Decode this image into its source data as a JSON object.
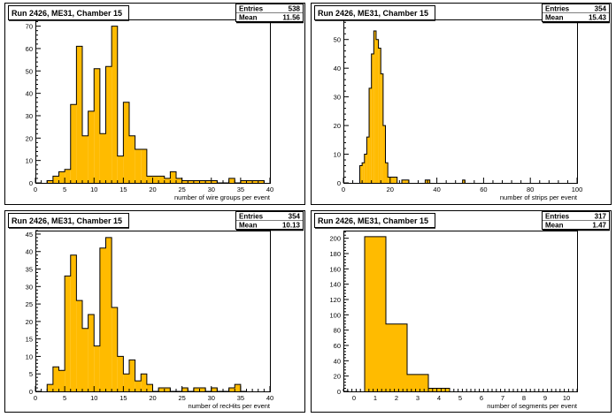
{
  "page": {
    "background": "#ffffff",
    "fill_color": "#ffbb00",
    "line_color": "#000000"
  },
  "chart_data": [
    {
      "type": "bar",
      "title": "Run 2426, ME31, Chamber 15",
      "xlabel": "number of wire groups per event",
      "stats": {
        "entries_label": "Entries",
        "entries": "538",
        "mean_label": "Mean",
        "mean": "11.56"
      },
      "xlim": [
        0,
        40
      ],
      "ylim": [
        0,
        73
      ],
      "x_ticks": [
        0,
        5,
        10,
        15,
        20,
        25,
        30,
        35,
        40
      ],
      "y_ticks": [
        0,
        10,
        20,
        30,
        40,
        50,
        60,
        70
      ],
      "bin_width": 1,
      "bin_start": [
        2,
        3,
        4,
        5,
        6,
        7,
        8,
        9,
        10,
        11,
        12,
        13,
        14,
        15,
        16,
        17,
        18,
        19,
        20,
        21,
        22,
        23,
        24,
        25,
        26,
        27,
        28,
        29,
        30,
        31,
        32,
        33,
        34,
        35,
        36,
        37,
        38
      ],
      "values": [
        1,
        3,
        5,
        6,
        35,
        61,
        21,
        32,
        51,
        22,
        52,
        70,
        12,
        36,
        21,
        15,
        15,
        3,
        3,
        3,
        2,
        5,
        2,
        1,
        1,
        1,
        1,
        1,
        1,
        0,
        0,
        2,
        0,
        1,
        1,
        1,
        1
      ]
    },
    {
      "type": "bar",
      "title": "Run 2426, ME31, Chamber 15",
      "xlabel": "number of strips per event",
      "stats": {
        "entries_label": "Entries",
        "entries": "354",
        "mean_label": "Mean",
        "mean": "15.43"
      },
      "xlim": [
        0,
        100
      ],
      "ylim": [
        0,
        57
      ],
      "x_ticks": [
        0,
        20,
        40,
        60,
        80,
        100
      ],
      "y_ticks": [
        0,
        10,
        20,
        30,
        40,
        50
      ],
      "bin_width": 1,
      "bin_start": [
        7,
        8,
        9,
        10,
        11,
        12,
        13,
        14,
        15,
        16,
        17,
        18,
        19,
        20,
        21,
        22,
        25,
        26,
        27,
        35,
        36,
        51
      ],
      "values": [
        6,
        7,
        10,
        16,
        33,
        45,
        53,
        50,
        47,
        38,
        20,
        7,
        2,
        2,
        2,
        2,
        1,
        1,
        1,
        1,
        1,
        1
      ]
    },
    {
      "type": "bar",
      "title": "Run 2426, ME31, Chamber 15",
      "xlabel": "number of recHits per event",
      "stats": {
        "entries_label": "Entries",
        "entries": "354",
        "mean_label": "Mean",
        "mean": "10.13"
      },
      "xlim": [
        0,
        40
      ],
      "ylim": [
        0,
        46
      ],
      "x_ticks": [
        0,
        5,
        10,
        15,
        20,
        25,
        30,
        35,
        40
      ],
      "y_ticks": [
        0,
        5,
        10,
        15,
        20,
        25,
        30,
        35,
        40,
        45
      ],
      "bin_width": 1,
      "bin_start": [
        2,
        3,
        4,
        5,
        6,
        7,
        8,
        9,
        10,
        11,
        12,
        13,
        14,
        15,
        16,
        17,
        18,
        19,
        20,
        21,
        22,
        23,
        24,
        25,
        26,
        27,
        28,
        29,
        30,
        31,
        32,
        33,
        34,
        35
      ],
      "values": [
        2,
        7,
        6,
        33,
        39,
        26,
        18,
        22,
        13,
        41,
        44,
        24,
        10,
        5,
        9,
        3,
        5,
        2,
        0,
        1,
        1,
        0,
        0,
        1,
        0,
        1,
        1,
        0,
        1,
        0,
        0,
        1,
        2,
        0
      ]
    },
    {
      "type": "bar",
      "title": "Run 2426, ME31, Chamber 15",
      "xlabel": "number of segments per event",
      "stats": {
        "entries_label": "Entries",
        "entries": "317",
        "mean_label": "Mean",
        "mean": "1.47"
      },
      "xlim": [
        -0.5,
        10.5
      ],
      "ylim": [
        0,
        210
      ],
      "x_ticks": [
        0,
        1,
        2,
        3,
        4,
        5,
        6,
        7,
        8,
        9,
        10
      ],
      "y_ticks": [
        0,
        20,
        40,
        60,
        80,
        100,
        120,
        140,
        160,
        180,
        200
      ],
      "bin_width": 1,
      "bin_start": [
        0.5,
        1.5,
        2.5,
        3.5
      ],
      "values": [
        202,
        88,
        22,
        4
      ]
    }
  ]
}
